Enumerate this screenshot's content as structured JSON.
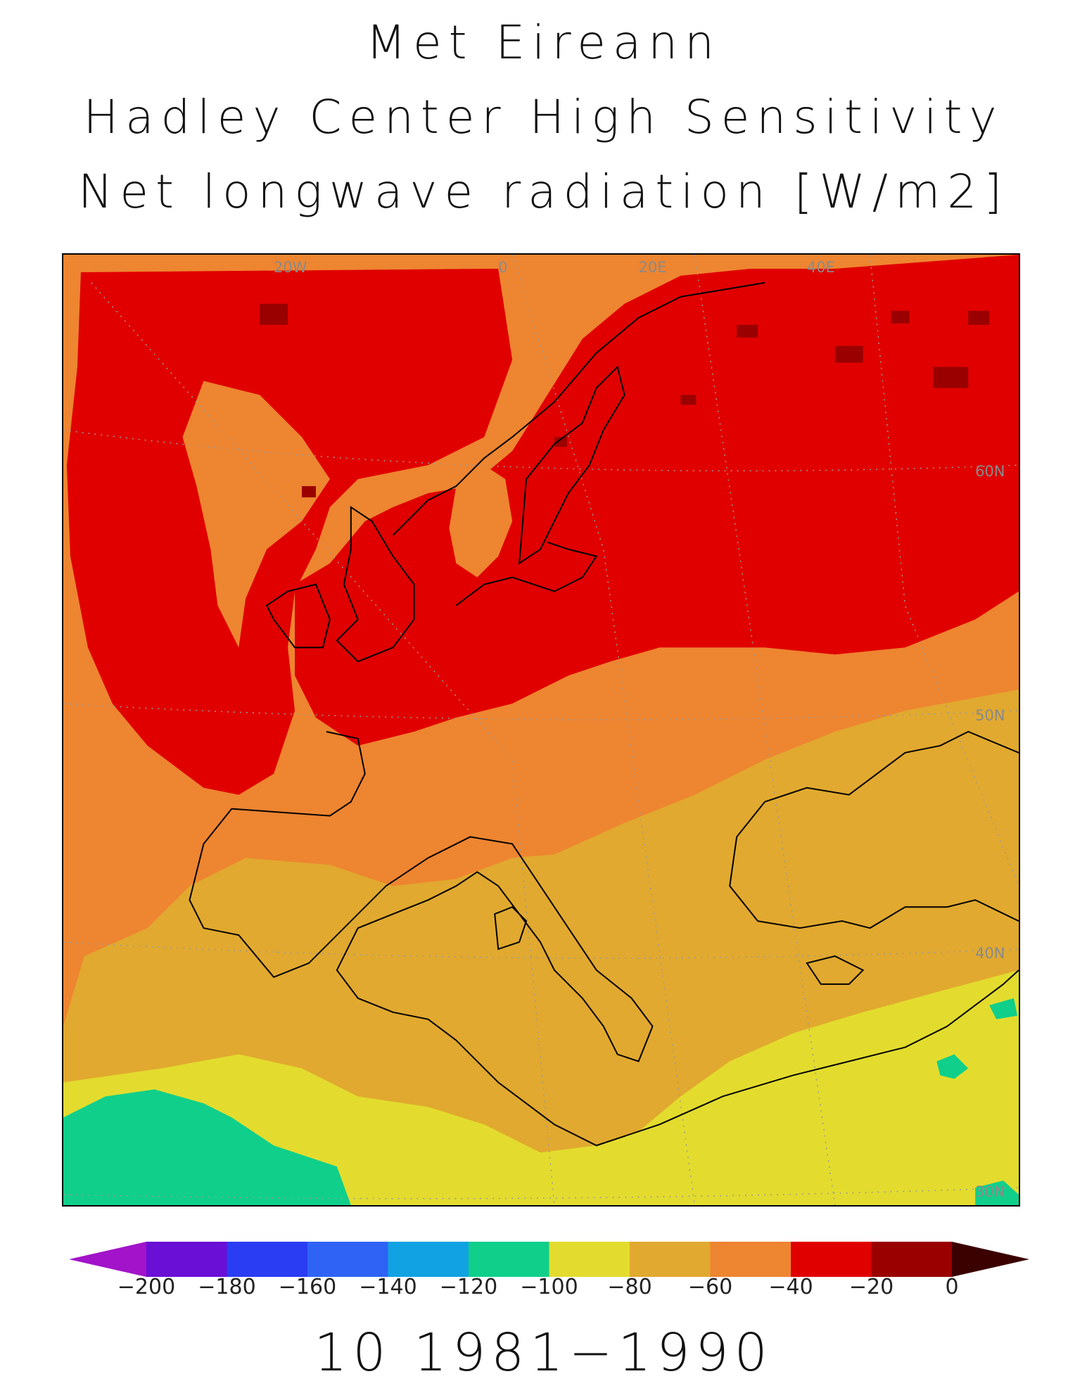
{
  "title": {
    "line1": "Met Eireann",
    "line2": "Hadley Center High Sensitivity",
    "line3": "Net longwave radiation [W/m2]"
  },
  "map": {
    "longitude_labels": [
      "20W",
      "0",
      "20E",
      "40E"
    ],
    "latitude_labels": [
      "60N",
      "50N",
      "40N",
      "30N"
    ],
    "background_class_color": "#ee8530"
  },
  "colorbar": {
    "tick_labels": [
      "-200",
      "-180",
      "-160",
      "-140",
      "-120",
      "-100",
      "-80",
      "-60",
      "-40",
      "-20",
      "0"
    ],
    "colors": [
      "#a213c9",
      "#6a0fd6",
      "#2a3df2",
      "#2e63f5",
      "#11a2e3",
      "#0fcf8b",
      "#e3dc2e",
      "#e1a92f",
      "#ee8530",
      "#e00000",
      "#9a0000",
      "#3b0000"
    ]
  },
  "period_label": "10 1981−1990"
}
